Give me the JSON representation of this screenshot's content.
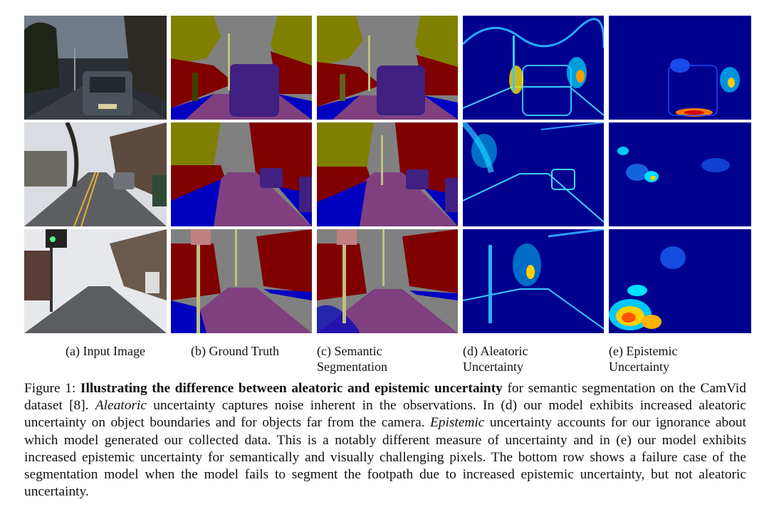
{
  "columns": [
    {
      "key": "input",
      "label": "(a) Input Image"
    },
    {
      "key": "gt",
      "label": "(b) Ground Truth"
    },
    {
      "key": "seg",
      "label": "(c) Semantic\nSegmentation"
    },
    {
      "key": "aleatoric",
      "label": "(d) Aleatoric\nUncertainty"
    },
    {
      "key": "epistemic",
      "label": "(e) Epistemic\nUncertainty"
    }
  ],
  "caption": {
    "prefix": "Figure 1: ",
    "bold": "Illustrating the difference between aleatoric and epistemic uncertainty",
    "part1": " for semantic segmentation on the CamVid dataset [8]. ",
    "italic1": "Aleatoric",
    "part2": " uncertainty captures noise inherent in the observations. In (d) our model exhibits increased aleatoric uncertainty on object boundaries and for objects far from the camera. ",
    "italic2": "Epistemic",
    "part3": " uncertainty accounts for our ignorance about which model generated our collected data.  This is a notably different measure of uncertainty and in (e) our model exhibits increased epistemic uncertainty for semantically and visually challenging pixels.  The bottom row shows a failure case of the segmentation model when the model fails to segment the footpath due to increased epistemic uncertainty, but not aleatoric uncertainty."
  },
  "colors": {
    "sky": "#808080",
    "tree": "#808000",
    "building": "#800000",
    "road": "#804080",
    "sidewalk": "#0000C0",
    "car": "#402080",
    "pole": "#C0C080",
    "sign": "#C08080",
    "heat_bg": "#00008F"
  }
}
